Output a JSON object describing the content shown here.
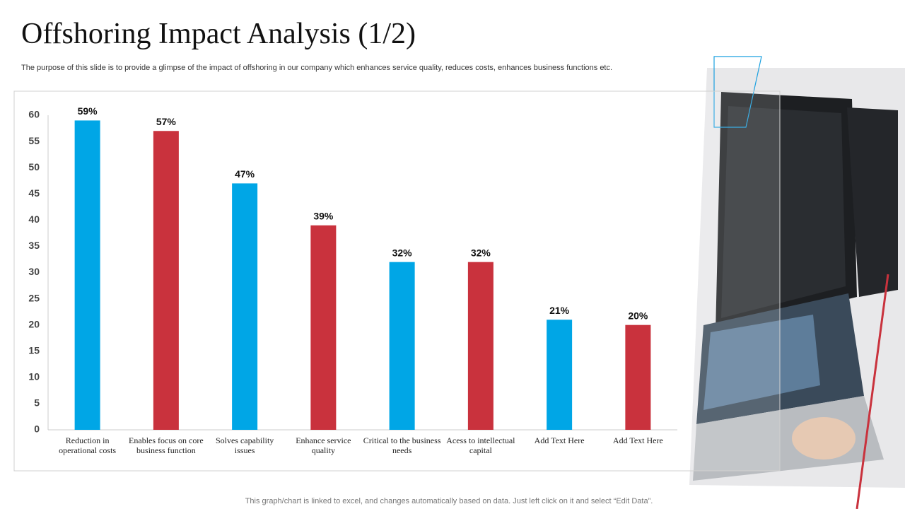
{
  "title": "Offshoring Impact Analysis (1/2)",
  "description": "The purpose of this slide is to provide a glimpse of the impact of offshoring in our company which enhances service quality, reduces costs, enhances business functions etc.",
  "footnote": "This graph/chart is linked to excel, and changes automatically based on data. Just left click on it and select “Edit Data”.",
  "chart_data": {
    "type": "bar",
    "categories": [
      "Reduction in operational costs",
      "Enables focus on core business function",
      "Solves capability issues",
      "Enhance service quality",
      "Critical to the business needs",
      "Acess to intellectual capital",
      "Add Text Here",
      "Add Text Here"
    ],
    "values": [
      59,
      57,
      47,
      39,
      32,
      32,
      21,
      20
    ],
    "value_labels": [
      "59%",
      "57%",
      "47%",
      "39%",
      "32%",
      "32%",
      "21%",
      "20%"
    ],
    "colors": [
      "#00a6e6",
      "#c9323d",
      "#00a6e6",
      "#c9323d",
      "#00a6e6",
      "#c9323d",
      "#00a6e6",
      "#c9323d"
    ],
    "ylim": [
      0,
      60
    ],
    "yticks": [
      0,
      5,
      10,
      15,
      20,
      25,
      30,
      35,
      40,
      45,
      50,
      55,
      60
    ],
    "grid": false
  }
}
